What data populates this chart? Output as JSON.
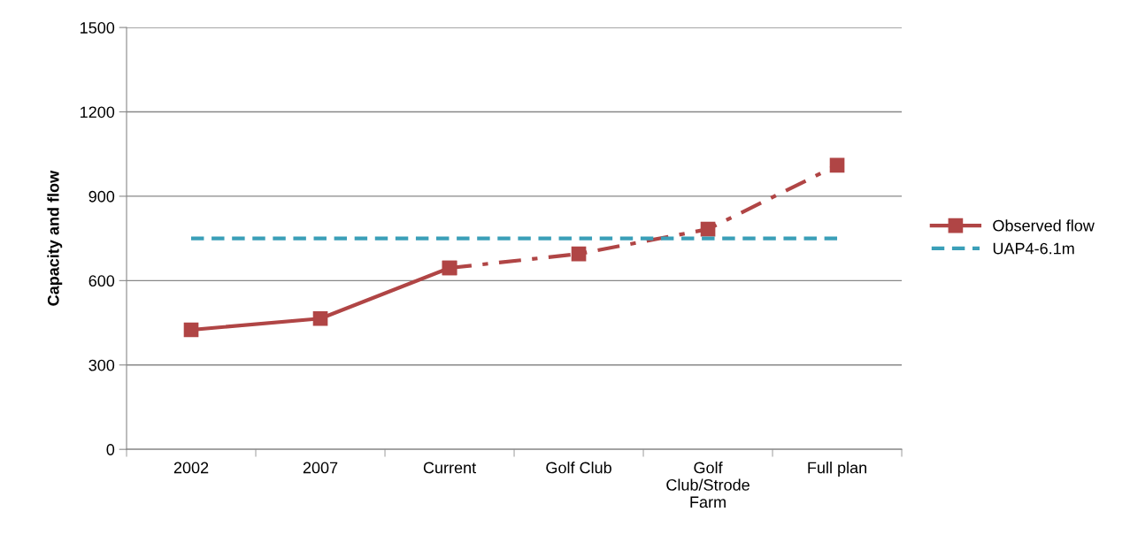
{
  "chart_data": {
    "type": "line",
    "ylabel": "Capacity and flow",
    "categories": [
      "2002",
      "2007",
      "Current",
      "Golf Club",
      "Golf\nClub/Strode\nFarm",
      "Full plan"
    ],
    "series": [
      {
        "name": "Observed flow",
        "color": "#b04545",
        "values": [
          425,
          465,
          645,
          null,
          null,
          null
        ],
        "marker": "square",
        "line_style": "solid"
      },
      {
        "color": "#b04545",
        "values": [
          null,
          null,
          645,
          695,
          783,
          1010
        ],
        "marker": "square",
        "line_style": "dashdot"
      },
      {
        "name": "UAP4-6.1m",
        "color": "#3a9fb8",
        "values": [
          750,
          750,
          750,
          750,
          750,
          750
        ],
        "marker": "none",
        "line_style": "dashed"
      }
    ],
    "ylim": [
      0,
      1500
    ],
    "yticks": [
      0,
      300,
      600,
      900,
      1200,
      1500
    ],
    "grid": "y",
    "legend": "right"
  }
}
